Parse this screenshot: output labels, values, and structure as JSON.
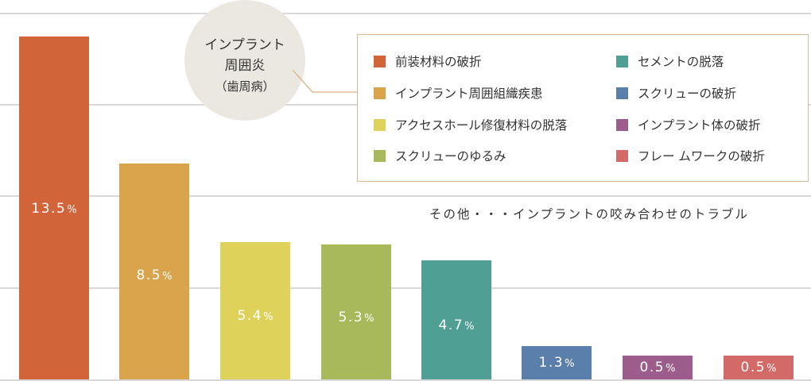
{
  "chart_data": {
    "type": "bar",
    "title": "",
    "xlabel": "",
    "ylabel": "",
    "ylim": [
      0,
      16
    ],
    "grid": true,
    "legend_position": "top-right",
    "categories": [
      "前装材料の破折",
      "インプラント周囲組織疾患",
      "アクセスホール修復材料の脱落",
      "スクリューのゆるみ",
      "セメントの脱落",
      "スクリューの破折",
      "インプラント体の破折",
      "フレー ムワークの破折"
    ],
    "values": [
      13.5,
      8.5,
      5.4,
      5.3,
      4.7,
      1.3,
      0.5,
      0.5
    ],
    "colors": [
      "#d2643a",
      "#d9a44c",
      "#dfd25a",
      "#a7b95a",
      "#4f9f95",
      "#5b7fab",
      "#9c5d8d",
      "#d46a68"
    ],
    "data_labels": [
      {
        "num": "13.5",
        "unit": "%"
      },
      {
        "num": "8.5",
        "unit": "%"
      },
      {
        "num": "5.4",
        "unit": "%"
      },
      {
        "num": "5.3",
        "unit": "%"
      },
      {
        "num": "4.7",
        "unit": "%"
      },
      {
        "num": "1.3",
        "unit": "%"
      },
      {
        "num": "0.5",
        "unit": "%"
      },
      {
        "num": "0.5",
        "unit": "%"
      }
    ],
    "annotations": {
      "callout": {
        "line1": "インプラント",
        "line2": "周囲炎",
        "line3": "（歯周病）",
        "points_to": "インプラント周囲組織疾患"
      },
      "note": "その他・・・インプラントの咬み合わせのトラブル"
    }
  },
  "legend": {
    "items": [
      {
        "label": "前装材料の破折",
        "color": "#d2643a"
      },
      {
        "label": "インプラント周囲組織疾患",
        "color": "#d9a44c"
      },
      {
        "label": "アクセスホール修復材料の脱落",
        "color": "#dfd25a"
      },
      {
        "label": "スクリューのゆるみ",
        "color": "#a7b95a"
      },
      {
        "label": "セメントの脱落",
        "color": "#4f9f95"
      },
      {
        "label": "スクリューの破折",
        "color": "#5b7fab"
      },
      {
        "label": "インプラント体の破折",
        "color": "#9c5d8d"
      },
      {
        "label": "フレー ムワークの破折",
        "color": "#d46a68"
      }
    ]
  },
  "callout": {
    "line1": "インプラント",
    "line2": "周囲炎",
    "line3": "（歯周病）"
  },
  "note": "その他・・・インプラントの咬み合わせのトラブル"
}
